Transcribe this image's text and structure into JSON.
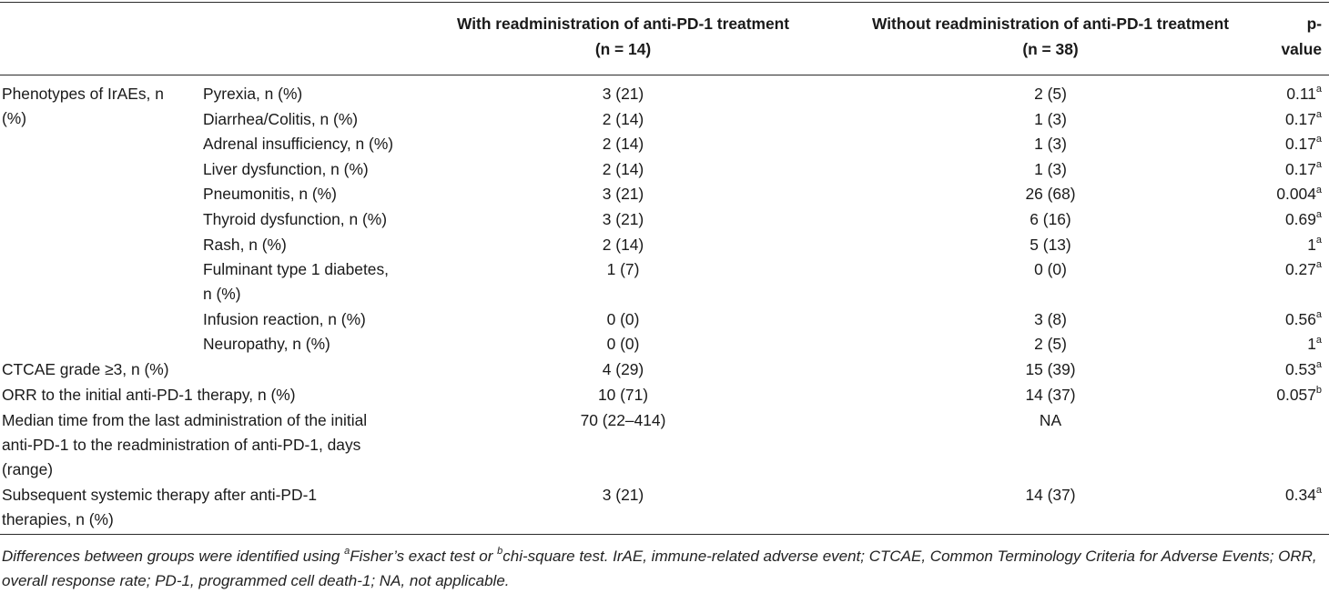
{
  "header": {
    "with_line1": "With readministration of anti-PD-1 treatment",
    "with_line2": "(n = 14)",
    "without_line1": "Without readministration of anti-PD-1 treatment",
    "without_line2": "(n = 38)",
    "pvalue_line1": "p-",
    "pvalue_line2": "value"
  },
  "group_label_line1": "Phenotypes of IrAEs, n",
  "group_label_line2": "(%)",
  "phenotype_rows": [
    {
      "label": "Pyrexia, n (%)",
      "with": "3 (21)",
      "without": "2 (5)",
      "p": "0.11",
      "sup": "a"
    },
    {
      "label": "Diarrhea/Colitis, n (%)",
      "with": "2 (14)",
      "without": "1 (3)",
      "p": "0.17",
      "sup": "a"
    },
    {
      "label": "Adrenal insufficiency, n (%)",
      "with": "2 (14)",
      "without": "1 (3)",
      "p": "0.17",
      "sup": "a"
    },
    {
      "label": "Liver dysfunction, n (%)",
      "with": "2 (14)",
      "without": "1 (3)",
      "p": "0.17",
      "sup": "a"
    },
    {
      "label": "Pneumonitis, n (%)",
      "with": "3 (21)",
      "without": "26 (68)",
      "p": "0.004",
      "sup": "a"
    },
    {
      "label": "Thyroid dysfunction, n (%)",
      "with": "3 (21)",
      "without": "6 (16)",
      "p": "0.69",
      "sup": "a"
    },
    {
      "label": "Rash, n (%)",
      "with": "2 (14)",
      "without": "5 (13)",
      "p": "1",
      "sup": "a"
    },
    {
      "label": "Fulminant type 1 diabetes,",
      "label2": "n (%)",
      "with": "1 (7)",
      "without": "0 (0)",
      "p": "0.27",
      "sup": "a"
    },
    {
      "label": "Infusion reaction, n (%)",
      "with": "0 (0)",
      "without": "3 (8)",
      "p": "0.56",
      "sup": "a"
    },
    {
      "label": "Neuropathy, n (%)",
      "with": "0 (0)",
      "without": "2 (5)",
      "p": "1",
      "sup": "a"
    }
  ],
  "other_rows": [
    {
      "label_lines": [
        "CTCAE grade ≥3, n (%)"
      ],
      "with": "4 (29)",
      "without": "15 (39)",
      "p": "0.53",
      "sup": "a"
    },
    {
      "label_lines": [
        "ORR to the initial anti-PD-1 therapy, n (%)"
      ],
      "with": "10 (71)",
      "without": "14 (37)",
      "p": "0.057",
      "sup": "b"
    },
    {
      "label_lines": [
        "Median time from the last administration of the initial",
        "anti-PD-1 to the readministration of anti-PD-1, days",
        "(range)"
      ],
      "with": "70 (22–414)",
      "without": "NA",
      "p": "",
      "sup": ""
    },
    {
      "label_lines": [
        "Subsequent systemic therapy after anti-PD-1",
        "therapies, n (%)"
      ],
      "with": "3 (21)",
      "without": "14 (37)",
      "p": "0.34",
      "sup": "a"
    }
  ],
  "footnote": {
    "part1": "Differences between groups were identified using ",
    "sup_a": "a",
    "part2": "Fisher’s exact test or ",
    "sup_b": "b",
    "part3": "chi-square test. IrAE, immune-related adverse event; CTCAE, Common Terminology Criteria for Adverse Events; ORR, overall response rate; PD-1, programmed cell death-1; NA, not applicable."
  }
}
